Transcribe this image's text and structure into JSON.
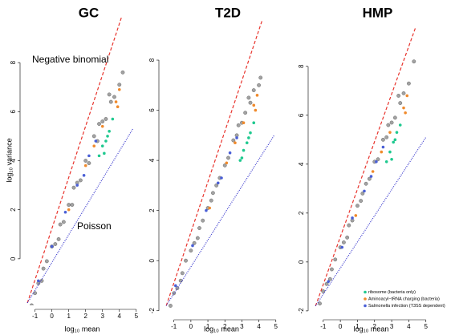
{
  "chart_data": [
    {
      "type": "scatter",
      "title": "GC",
      "xlabel": "log₁₀ mean",
      "ylabel": "log₁₀ variance",
      "xlim": [
        -1.6,
        5.2
      ],
      "ylim": [
        -1.9,
        9.9
      ],
      "xticks": [
        -1,
        0,
        1,
        2,
        3,
        4,
        5
      ],
      "yticks": [
        0,
        2,
        4,
        6,
        8
      ],
      "lines": [
        {
          "name": "Negative binomial",
          "color": "#e8332c",
          "dash": "dashed",
          "x": [
            -1.45,
            4.15
          ],
          "y": [
            -1.8,
            9.9
          ]
        },
        {
          "name": "Poisson",
          "color": "#3333cc",
          "dash": "dotted",
          "x": [
            -1.45,
            4.8
          ],
          "y": [
            -1.8,
            5.3
          ]
        }
      ],
      "series": [
        {
          "color": "#555555",
          "x": [
            -1.2,
            -1.0,
            -0.8,
            -0.5,
            -0.3,
            0,
            0.2,
            0.5,
            0.7,
            1.0,
            1.2,
            1.5,
            1.7,
            2.0,
            2.2,
            2.5,
            2.7,
            3.0,
            3.2,
            3.5,
            3.7,
            4.0,
            4.2,
            1.3,
            0.4,
            2.8,
            -0.6,
            3.4
          ],
          "values": [
            -1.9,
            -1.4,
            -1.0,
            -0.4,
            -0.1,
            0.5,
            0.6,
            1.4,
            1.5,
            2.2,
            2.2,
            3.1,
            3.2,
            4.0,
            3.9,
            5.0,
            4.8,
            5.6,
            5.7,
            6.4,
            6.6,
            7.1,
            7.6,
            2.9,
            0.8,
            5.5,
            -0.9,
            6.7
          ]
        },
        {
          "color": "#1fc98f",
          "x": [
            2.8,
            3.0,
            3.2,
            3.4,
            3.6,
            3.3,
            3.1
          ],
          "values": [
            4.2,
            4.6,
            4.8,
            5.2,
            5.7,
            5.0,
            4.3
          ]
        },
        {
          "color": "#f08a2c",
          "x": [
            1.0,
            2.0,
            3.0,
            3.8,
            4.0,
            3.9,
            2.5
          ],
          "values": [
            2.0,
            3.8,
            5.4,
            6.4,
            6.9,
            6.2,
            4.6
          ]
        },
        {
          "color": "#4a5fd6",
          "x": [
            -0.8,
            0,
            0.8,
            1.5,
            2.2,
            2.6,
            1.9
          ],
          "values": [
            -0.9,
            0.5,
            1.9,
            3.0,
            4.2,
            4.8,
            3.4
          ]
        }
      ]
    },
    {
      "type": "scatter",
      "title": "T2D",
      "xlabel": "log₁₀ mean",
      "xlim": [
        -1.6,
        5.2
      ],
      "ylim": [
        -2.2,
        9.6
      ],
      "xticks": [
        -1,
        0,
        1,
        2,
        3,
        4,
        5
      ],
      "yticks": [
        -2,
        0,
        2,
        4,
        6,
        8
      ],
      "lines": [
        {
          "color": "#e8332c",
          "dash": "dashed",
          "x": [
            -1.45,
            4.2
          ],
          "y": [
            -1.8,
            9.6
          ]
        },
        {
          "color": "#3333cc",
          "dash": "dotted",
          "x": [
            -1.45,
            4.9
          ],
          "y": [
            -1.8,
            5.0
          ]
        }
      ],
      "series": [
        {
          "color": "#555555",
          "x": [
            -1.2,
            -1.0,
            -0.8,
            -0.5,
            -0.3,
            0,
            0.2,
            0.5,
            0.7,
            1.0,
            1.2,
            1.5,
            1.7,
            2.0,
            2.2,
            2.5,
            2.7,
            3.0,
            3.2,
            3.5,
            3.7,
            4.0,
            4.1,
            1.3,
            0.4,
            2.8,
            -0.6,
            3.4
          ],
          "values": [
            -1.8,
            -1.3,
            -1.1,
            -0.5,
            0,
            0.4,
            0.7,
            1.3,
            1.6,
            2.1,
            2.4,
            3.0,
            3.3,
            3.8,
            4.1,
            4.8,
            5.0,
            5.5,
            5.9,
            6.3,
            6.8,
            7.0,
            7.3,
            2.7,
            0.9,
            5.4,
            -0.8,
            6.5
          ]
        },
        {
          "color": "#1fc98f",
          "x": [
            2.9,
            3.1,
            3.3,
            3.5,
            3.7,
            3.4,
            3.0
          ],
          "values": [
            4.0,
            4.4,
            4.7,
            5.1,
            5.5,
            4.9,
            4.1
          ]
        },
        {
          "color": "#f08a2c",
          "x": [
            1.1,
            2.1,
            3.1,
            3.7,
            3.9,
            3.8,
            2.6
          ],
          "values": [
            2.1,
            3.9,
            5.5,
            6.2,
            6.6,
            6.0,
            4.7
          ]
        },
        {
          "color": "#4a5fd6",
          "x": [
            -0.9,
            0.1,
            0.9,
            1.6,
            2.3,
            2.7,
            1.8
          ],
          "values": [
            -1.0,
            0.6,
            2.0,
            3.1,
            4.3,
            4.9,
            3.3
          ]
        }
      ]
    },
    {
      "type": "scatter",
      "title": "HMP",
      "xlabel": "log₁₀ mean",
      "legend": "lower right",
      "xlim": [
        -1.6,
        5.2
      ],
      "ylim": [
        -2.2,
        9.6
      ],
      "xticks": [
        -1,
        0,
        1,
        2,
        3,
        4,
        5
      ],
      "yticks": [
        -2,
        0,
        2,
        4,
        6,
        8
      ],
      "lines": [
        {
          "color": "#e8332c",
          "dash": "dashed",
          "x": [
            -1.45,
            4.4
          ],
          "y": [
            -1.8,
            9.6
          ]
        },
        {
          "color": "#3333cc",
          "dash": "dotted",
          "x": [
            -1.45,
            5.0
          ],
          "y": [
            -1.8,
            5.1
          ]
        }
      ],
      "series": [
        {
          "color": "#555555",
          "x": [
            -1.2,
            -1.0,
            -0.8,
            -0.5,
            -0.3,
            0,
            0.2,
            0.5,
            0.7,
            1.0,
            1.2,
            1.5,
            1.7,
            2.0,
            2.2,
            2.5,
            2.7,
            3.0,
            3.2,
            3.5,
            3.7,
            4.0,
            4.3,
            1.3,
            0.4,
            2.8,
            -0.6,
            3.4
          ],
          "values": [
            -1.7,
            -1.2,
            -0.9,
            -0.3,
            0.1,
            0.6,
            0.8,
            1.5,
            1.7,
            2.3,
            2.5,
            3.2,
            3.4,
            4.1,
            4.2,
            5.0,
            5.1,
            5.7,
            5.9,
            6.5,
            6.9,
            7.3,
            8.2,
            2.8,
            1.0,
            5.6,
            -0.7,
            6.8
          ]
        },
        {
          "name": "ribosome (bacteria only)",
          "color": "#1fc98f",
          "x": [
            2.7,
            2.9,
            3.1,
            3.3,
            3.5,
            3.2,
            3.0
          ],
          "values": [
            4.1,
            4.5,
            4.9,
            5.3,
            5.6,
            5.0,
            4.2
          ]
        },
        {
          "name": "Aminoacyl−tRNA charging (bacteria)",
          "color": "#f08a2c",
          "x": [
            0.9,
            1.9,
            2.9,
            3.7,
            3.9,
            3.8,
            2.4
          ],
          "values": [
            1.9,
            3.7,
            5.3,
            6.3,
            6.8,
            6.1,
            4.5
          ]
        },
        {
          "name": "Salmonella infection (T3SS dependent)",
          "color": "#4a5fd6",
          "x": [
            -0.7,
            0.1,
            0.7,
            1.4,
            2.1,
            2.5,
            1.8
          ],
          "values": [
            -0.8,
            0.6,
            1.8,
            2.9,
            4.1,
            4.7,
            3.5
          ]
        }
      ]
    }
  ]
}
